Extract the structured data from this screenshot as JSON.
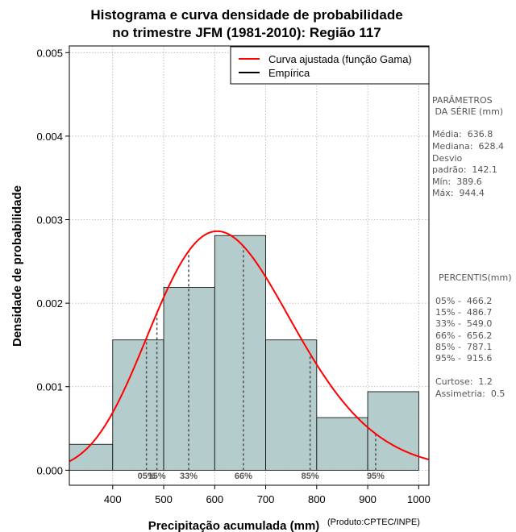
{
  "chart_data": {
    "type": "histogram",
    "title": [
      "Histograma e curva densidade de probabilidade",
      "no trimestre JFM (1981-2010): Região 117"
    ],
    "xlabel": "Precipitação acumulada (mm)",
    "ylabel": "Densidade de probabilidade",
    "credit": "(Produto:CPTEC/INPE)",
    "xlim": [
      315,
      1020
    ],
    "ylim": [
      -0.00018,
      0.00508
    ],
    "xticks": [
      400,
      500,
      600,
      700,
      800,
      900,
      1000
    ],
    "yticks": [
      0.0,
      0.001,
      0.002,
      0.003,
      0.004,
      0.005
    ],
    "ytick_labels": [
      "0.000",
      "0.001",
      "0.002",
      "0.003",
      "0.004",
      "0.005"
    ],
    "bars": [
      {
        "x0": 300,
        "x1": 400,
        "density": 0.00031
      },
      {
        "x0": 400,
        "x1": 500,
        "density": 0.00156
      },
      {
        "x0": 500,
        "x1": 600,
        "density": 0.00219
      },
      {
        "x0": 600,
        "x1": 700,
        "density": 0.00281
      },
      {
        "x0": 700,
        "x1": 800,
        "density": 0.00156
      },
      {
        "x0": 800,
        "x1": 900,
        "density": 0.00063
      },
      {
        "x0": 900,
        "x1": 1000,
        "density": 0.00094
      }
    ],
    "curve": {
      "name": "Curva ajustada (função Gama)",
      "dist": "gamma",
      "shape": 20.0,
      "mean": 636.8,
      "color": "#ff0000"
    },
    "percentile_lines": [
      {
        "label": "05%",
        "x": 466.2
      },
      {
        "label": "15%",
        "x": 486.7
      },
      {
        "label": "33%",
        "x": 549.0
      },
      {
        "label": "66%",
        "x": 656.2
      },
      {
        "label": "85%",
        "x": 787.1
      },
      {
        "label": "95%",
        "x": 915.6
      }
    ],
    "legend": [
      {
        "label": "Curva ajustada (função Gama)",
        "color": "#ff0000"
      },
      {
        "label": "Empírica",
        "color": "#000000"
      }
    ],
    "legend_position": "top-right",
    "grid": true,
    "bar_color": "#b4cccc"
  },
  "side_panel": {
    "params_heading": [
      "PARÂMETROS",
      " DA SÉRIE (mm)"
    ],
    "params": [
      "Média:  636.8",
      "Mediana:  628.4",
      "Desvio",
      "padrão:  142.1",
      "Mín:  389.6",
      "Máx:  944.4"
    ],
    "percentis_heading": "PERCENTIS(mm)",
    "percentis": [
      "05% -  466.2",
      "15% -  486.7",
      "33% -  549.0",
      "66% -  656.2",
      "85% -  787.1",
      "95% -  915.6"
    ],
    "stats": [
      "Curtose:  1.2",
      "Assimetria:  0.5"
    ]
  }
}
